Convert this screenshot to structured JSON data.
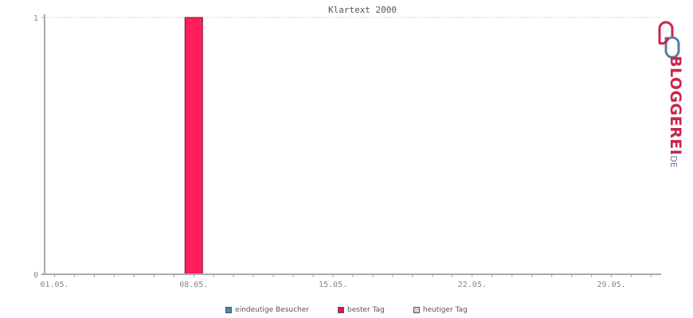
{
  "chart_data": {
    "type": "bar",
    "title": "Klartext 2000",
    "xlabel": "",
    "ylabel": "",
    "x_ticks": [
      "01.05.",
      "08.05.",
      "15.05.",
      "22.05.",
      "29.05."
    ],
    "y_ticks": [
      "0",
      "1"
    ],
    "ylim": [
      0,
      1
    ],
    "days": 31,
    "series": [
      {
        "name": "bester Tag",
        "color": "#ff1f5a",
        "points": [
          {
            "x": "08.05.",
            "y": 1
          }
        ]
      }
    ],
    "legend": {
      "placement": "bottom",
      "items": [
        {
          "label": "eindeutige Besucher",
          "color": "#4a87b1"
        },
        {
          "label": "bester Tag",
          "color": "#e8114f"
        },
        {
          "label": "heutiger Tag",
          "color": "#d3d3d3"
        }
      ]
    },
    "grid": true
  },
  "logo": {
    "text_main": "BLOGGEREI",
    "text_suffix": ".DE",
    "color_main": "#c8254e",
    "color_suffix": "#5a7ea1"
  }
}
